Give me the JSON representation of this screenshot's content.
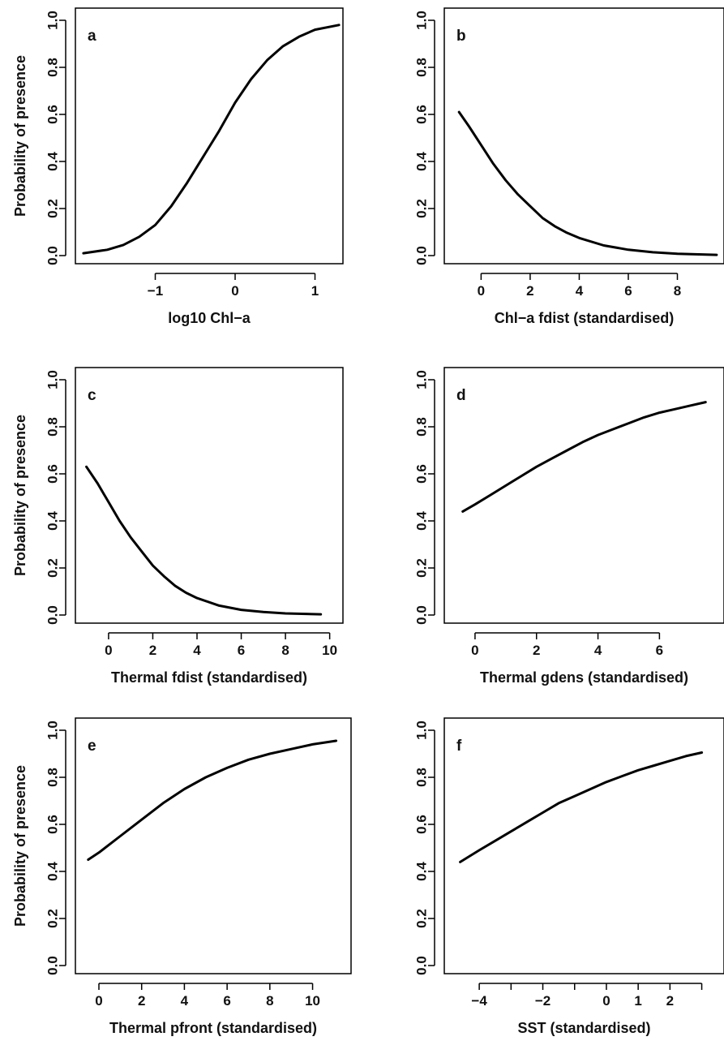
{
  "chart_data": [
    {
      "type": "line",
      "panel_label": "a",
      "xlabel": "log10 Chl−a",
      "ylabel": "Probability of presence",
      "xlim": [
        -2.0,
        1.35
      ],
      "ylim": [
        0,
        1
      ],
      "xticks": [
        -1,
        0,
        1
      ],
      "xtick_labels": [
        "−1",
        "0",
        "1"
      ],
      "yticks": [
        0.0,
        0.2,
        0.4,
        0.6,
        0.8,
        1.0
      ],
      "ytick_labels": [
        "0.0",
        "0.2",
        "0.4",
        "0.6",
        "0.8",
        "1.0"
      ],
      "series": [
        {
          "x": [
            -1.9,
            -1.6,
            -1.4,
            -1.2,
            -1.0,
            -0.8,
            -0.6,
            -0.4,
            -0.2,
            0.0,
            0.2,
            0.4,
            0.6,
            0.8,
            1.0,
            1.3
          ],
          "y": [
            0.01,
            0.025,
            0.045,
            0.08,
            0.13,
            0.21,
            0.31,
            0.42,
            0.53,
            0.65,
            0.75,
            0.83,
            0.89,
            0.93,
            0.96,
            0.98
          ]
        }
      ]
    },
    {
      "type": "line",
      "panel_label": "b",
      "xlabel": "Chl−a fdist (standardised)",
      "ylabel": "",
      "xlim": [
        -1.5,
        9.9
      ],
      "ylim": [
        0,
        1
      ],
      "xticks": [
        0,
        2,
        4,
        6,
        8
      ],
      "xtick_labels": [
        "0",
        "2",
        "4",
        "6",
        "8"
      ],
      "yticks": [
        0.0,
        0.2,
        0.4,
        0.6,
        0.8,
        1.0
      ],
      "ytick_labels": [
        "0.0",
        "0.2",
        "0.4",
        "0.6",
        "0.8",
        "1.0"
      ],
      "series": [
        {
          "x": [
            -0.9,
            -0.5,
            0.0,
            0.5,
            1.0,
            1.5,
            2.0,
            2.5,
            3.0,
            3.5,
            4.0,
            5.0,
            6.0,
            7.0,
            8.0,
            9.6
          ],
          "y": [
            0.61,
            0.55,
            0.47,
            0.39,
            0.32,
            0.26,
            0.21,
            0.16,
            0.125,
            0.097,
            0.075,
            0.043,
            0.025,
            0.014,
            0.008,
            0.003
          ]
        }
      ]
    },
    {
      "type": "line",
      "panel_label": "c",
      "xlabel": "Thermal fdist (standardised)",
      "ylabel": "Probability of presence",
      "xlim": [
        -1.5,
        10.6
      ],
      "ylim": [
        0,
        1
      ],
      "xticks": [
        0,
        2,
        4,
        6,
        8,
        10
      ],
      "xtick_labels": [
        "0",
        "2",
        "4",
        "6",
        "8",
        "10"
      ],
      "yticks": [
        0.0,
        0.2,
        0.4,
        0.6,
        0.8,
        1.0
      ],
      "ytick_labels": [
        "0.0",
        "0.2",
        "0.4",
        "0.6",
        "0.8",
        "1.0"
      ],
      "series": [
        {
          "x": [
            -1.0,
            -0.5,
            0.0,
            0.5,
            1.0,
            1.5,
            2.0,
            2.5,
            3.0,
            3.5,
            4.0,
            5.0,
            6.0,
            7.0,
            8.0,
            9.6
          ],
          "y": [
            0.63,
            0.56,
            0.48,
            0.4,
            0.33,
            0.27,
            0.21,
            0.165,
            0.125,
            0.095,
            0.072,
            0.04,
            0.022,
            0.013,
            0.007,
            0.003
          ]
        }
      ]
    },
    {
      "type": "line",
      "panel_label": "d",
      "xlabel": "Thermal gdens (standardised)",
      "ylabel": "",
      "xlim": [
        -1.0,
        8.1
      ],
      "ylim": [
        0,
        1
      ],
      "xticks": [
        0,
        2,
        4,
        6
      ],
      "xtick_labels": [
        "0",
        "2",
        "4",
        "6"
      ],
      "yticks": [
        0.0,
        0.2,
        0.4,
        0.6,
        0.8,
        1.0
      ],
      "ytick_labels": [
        "0.0",
        "0.2",
        "0.4",
        "0.6",
        "0.8",
        "1.0"
      ],
      "series": [
        {
          "x": [
            -0.4,
            0.0,
            0.5,
            1.0,
            1.5,
            2.0,
            2.5,
            3.0,
            3.5,
            4.0,
            4.5,
            5.0,
            5.5,
            6.0,
            6.5,
            7.0,
            7.5
          ],
          "y": [
            0.44,
            0.47,
            0.51,
            0.55,
            0.59,
            0.63,
            0.665,
            0.7,
            0.735,
            0.765,
            0.79,
            0.815,
            0.84,
            0.86,
            0.875,
            0.89,
            0.905
          ]
        }
      ]
    },
    {
      "type": "line",
      "panel_label": "e",
      "xlabel": "Thermal pfront (standardised)",
      "ylabel": "Probability of presence",
      "xlim": [
        -1.1,
        11.8
      ],
      "ylim": [
        0,
        1
      ],
      "xticks": [
        0,
        2,
        4,
        6,
        8,
        10
      ],
      "xtick_labels": [
        "0",
        "2",
        "4",
        "6",
        "8",
        "10"
      ],
      "yticks": [
        0.0,
        0.2,
        0.4,
        0.6,
        0.8,
        1.0
      ],
      "ytick_labels": [
        "0.0",
        "0.2",
        "0.4",
        "0.6",
        "0.8",
        "1.0"
      ],
      "series": [
        {
          "x": [
            -0.5,
            0.0,
            1.0,
            2.0,
            3.0,
            4.0,
            5.0,
            6.0,
            7.0,
            8.0,
            9.0,
            10.0,
            11.1
          ],
          "y": [
            0.45,
            0.48,
            0.55,
            0.62,
            0.69,
            0.75,
            0.8,
            0.84,
            0.875,
            0.9,
            0.92,
            0.94,
            0.955
          ]
        }
      ]
    },
    {
      "type": "line",
      "panel_label": "f",
      "xlabel": "SST (standardised)",
      "ylabel": "",
      "xlim": [
        -5.1,
        3.7
      ],
      "ylim": [
        0,
        1
      ],
      "xticks": [
        -4,
        -3,
        -2,
        -1,
        0,
        1,
        2,
        3
      ],
      "xtick_labels": [
        "−4",
        "",
        "−2",
        "",
        "0",
        "1",
        "2",
        ""
      ],
      "yticks": [
        0.0,
        0.2,
        0.4,
        0.6,
        0.8,
        1.0
      ],
      "ytick_labels": [
        "0.0",
        "0.2",
        "0.4",
        "0.6",
        "0.8",
        "1.0"
      ],
      "series": [
        {
          "x": [
            -4.6,
            -4.0,
            -3.5,
            -3.0,
            -2.5,
            -2.0,
            -1.5,
            -1.0,
            -0.5,
            0.0,
            0.5,
            1.0,
            1.5,
            2.0,
            2.5,
            3.0
          ],
          "y": [
            0.44,
            0.49,
            0.53,
            0.57,
            0.61,
            0.65,
            0.69,
            0.72,
            0.75,
            0.78,
            0.805,
            0.83,
            0.85,
            0.87,
            0.89,
            0.905
          ]
        }
      ]
    }
  ]
}
